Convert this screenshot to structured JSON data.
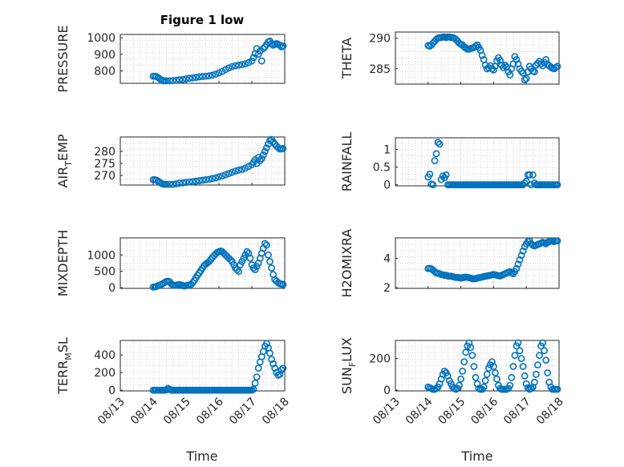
{
  "figure": {
    "title": "Figure 1 low",
    "xlabel": "Time",
    "x_tick_labels": [
      "08/13",
      "08/14",
      "08/15",
      "08/16",
      "08/17",
      "08/18"
    ],
    "marker_color": "#0072BD"
  },
  "chart_data": [
    {
      "type": "scatter",
      "ylabel": "PRESSURE",
      "xlim": [
        0,
        5
      ],
      "ylim": [
        725,
        1020
      ],
      "y_ticks": [
        800,
        900,
        1000
      ],
      "grid": true,
      "x": [
        1.0,
        1.05,
        1.1,
        1.15,
        1.2,
        1.25,
        1.3,
        1.35,
        1.4,
        1.5,
        1.6,
        1.7,
        1.8,
        1.9,
        2.0,
        2.1,
        2.2,
        2.3,
        2.4,
        2.5,
        2.6,
        2.7,
        2.8,
        2.9,
        3.0,
        3.1,
        3.2,
        3.3,
        3.4,
        3.5,
        3.6,
        3.7,
        3.8,
        3.9,
        4.0,
        4.05,
        4.1,
        4.15,
        4.2,
        4.25,
        4.3,
        4.35,
        4.4,
        4.45,
        4.5,
        4.55,
        4.6,
        4.65,
        4.7,
        4.75,
        4.8,
        4.85,
        4.9,
        4.95
      ],
      "values": [
        768,
        768,
        765,
        760,
        752,
        745,
        741,
        740,
        740,
        740,
        741,
        743,
        746,
        748,
        752,
        755,
        758,
        761,
        764,
        766,
        768,
        770,
        774,
        780,
        788,
        797,
        808,
        818,
        826,
        831,
        835,
        838,
        842,
        850,
        860,
        880,
        905,
        935,
        900,
        920,
        860,
        935,
        945,
        960,
        975,
        980,
        965,
        955,
        960,
        965,
        960,
        955,
        945,
        950
      ]
    },
    {
      "type": "scatter",
      "ylabel": "THETA",
      "xlim": [
        0,
        5
      ],
      "ylim": [
        282.5,
        291
      ],
      "y_ticks": [
        285,
        290
      ],
      "grid": true,
      "x": [
        1.0,
        1.05,
        1.1,
        1.15,
        1.2,
        1.25,
        1.3,
        1.35,
        1.4,
        1.45,
        1.5,
        1.55,
        1.6,
        1.65,
        1.7,
        1.75,
        1.8,
        1.85,
        1.9,
        1.95,
        2.0,
        2.05,
        2.1,
        2.15,
        2.2,
        2.25,
        2.3,
        2.35,
        2.4,
        2.45,
        2.5,
        2.55,
        2.6,
        2.65,
        2.7,
        2.75,
        2.8,
        2.85,
        2.9,
        2.95,
        3.0,
        3.05,
        3.1,
        3.15,
        3.2,
        3.25,
        3.3,
        3.35,
        3.4,
        3.45,
        3.5,
        3.55,
        3.6,
        3.65,
        3.7,
        3.75,
        3.8,
        3.85,
        3.9,
        3.95,
        4.0,
        4.05,
        4.1,
        4.15,
        4.2,
        4.25,
        4.3,
        4.35,
        4.4,
        4.45,
        4.5,
        4.55,
        4.6,
        4.65,
        4.7,
        4.75,
        4.8,
        4.85,
        4.9,
        4.95
      ],
      "values": [
        288.8,
        288.7,
        288.9,
        289.2,
        289.5,
        289.8,
        290.0,
        290.1,
        290.1,
        290.2,
        290.2,
        290.1,
        290.2,
        290.2,
        290.1,
        290.1,
        290.0,
        289.8,
        289.5,
        289.2,
        289.0,
        288.9,
        288.6,
        288.4,
        288.2,
        288.2,
        288.3,
        288.4,
        288.5,
        288.7,
        288.9,
        288.5,
        288.0,
        287.2,
        286.5,
        285.6,
        285.0,
        285.2,
        285.5,
        285.0,
        284.8,
        285.4,
        286.3,
        286.8,
        286.4,
        285.6,
        285.2,
        285.6,
        285.3,
        284.5,
        284.0,
        285.0,
        285.8,
        287.0,
        286.5,
        285.8,
        285.0,
        284.6,
        284.3,
        283.2,
        283.4,
        284.5,
        285.4,
        285.0,
        284.6,
        284.5,
        285.6,
        285.9,
        286.2,
        285.8,
        285.5,
        286.0,
        286.5,
        285.8,
        285.5,
        285.3,
        285.1,
        285.0,
        285.2,
        285.4
      ]
    },
    {
      "type": "scatter",
      "ylabel": "AIR",
      "ylabel_sub": "T",
      "ylabel_after": "EMP",
      "xlim": [
        0,
        5
      ],
      "ylim": [
        266,
        286
      ],
      "y_ticks": [
        270,
        275,
        280
      ],
      "grid": true,
      "x": [
        1.0,
        1.05,
        1.1,
        1.15,
        1.2,
        1.25,
        1.3,
        1.35,
        1.4,
        1.5,
        1.6,
        1.7,
        1.8,
        1.9,
        2.0,
        2.1,
        2.2,
        2.3,
        2.4,
        2.5,
        2.6,
        2.7,
        2.8,
        2.9,
        3.0,
        3.1,
        3.2,
        3.3,
        3.4,
        3.5,
        3.6,
        3.7,
        3.8,
        3.9,
        4.0,
        4.05,
        4.1,
        4.15,
        4.2,
        4.25,
        4.3,
        4.35,
        4.4,
        4.45,
        4.5,
        4.55,
        4.6,
        4.65,
        4.7,
        4.75,
        4.8,
        4.85,
        4.9,
        4.95
      ],
      "values": [
        268.2,
        268.2,
        268.0,
        267.6,
        267.1,
        266.7,
        266.4,
        266.3,
        266.3,
        266.3,
        266.3,
        266.5,
        266.8,
        266.9,
        267.1,
        267.3,
        267.4,
        267.6,
        267.8,
        268.0,
        268.2,
        268.4,
        268.7,
        269.0,
        269.4,
        269.8,
        270.3,
        270.8,
        271.3,
        271.8,
        272.2,
        272.5,
        273.0,
        273.7,
        274.5,
        275.4,
        276.5,
        275.0,
        277.5,
        276.2,
        277.0,
        278.5,
        280.0,
        281.5,
        283.0,
        284.5,
        285.0,
        284.0,
        283.0,
        282.2,
        281.6,
        281.0,
        281.0,
        281.2
      ]
    },
    {
      "type": "scatter",
      "ylabel": "RAINFALL",
      "xlim": [
        0,
        5
      ],
      "ylim": [
        -0.03,
        1.33
      ],
      "y_ticks": [
        0,
        0.5,
        1
      ],
      "y_tick_labels": [
        "0",
        "0.5",
        "1"
      ],
      "grid": true,
      "x": [
        1.0,
        1.05,
        1.1,
        1.15,
        1.2,
        1.25,
        1.3,
        1.35,
        1.4,
        1.45,
        1.5,
        1.55,
        1.6,
        1.65,
        1.7,
        1.75,
        1.8,
        1.85,
        1.9,
        1.95,
        2.0,
        2.05,
        2.1,
        2.15,
        2.2,
        2.25,
        2.3,
        2.35,
        2.4,
        2.45,
        2.5,
        2.55,
        2.6,
        2.65,
        2.7,
        2.75,
        2.8,
        2.85,
        2.9,
        2.95,
        3.0,
        3.05,
        3.1,
        3.15,
        3.2,
        3.25,
        3.3,
        3.35,
        3.4,
        3.45,
        3.5,
        3.55,
        3.6,
        3.65,
        3.7,
        3.75,
        3.8,
        3.85,
        3.9,
        3.95,
        4.0,
        4.05,
        4.1,
        4.15,
        4.2,
        4.25,
        4.3,
        4.35,
        4.4,
        4.45,
        4.5,
        4.55,
        4.6,
        4.65,
        4.7,
        4.75,
        4.8,
        4.85,
        4.9,
        4.95
      ],
      "values": [
        0.22,
        0.3,
        0.02,
        0.0,
        0.68,
        0.88,
        1.2,
        1.15,
        0.15,
        0.25,
        0.2,
        0.28,
        0.0,
        0.0,
        0,
        0,
        0,
        0,
        0,
        0,
        0,
        0,
        0,
        0,
        0,
        0,
        0,
        0,
        0,
        0,
        0,
        0,
        0,
        0,
        0,
        0,
        0,
        0,
        0,
        0,
        0,
        0,
        0,
        0,
        0,
        0,
        0,
        0,
        0,
        0,
        0,
        0,
        0,
        0,
        0,
        0,
        0,
        0,
        0,
        0.05,
        0.1,
        0.28,
        0.28,
        0.0,
        0.28,
        0.05,
        0,
        0,
        0,
        0,
        0,
        0,
        0,
        0,
        0,
        0,
        0,
        0,
        0,
        0
      ]
    },
    {
      "type": "scatter",
      "ylabel": "MIXDEPTH",
      "xlim": [
        0,
        5
      ],
      "ylim": [
        -20,
        1520
      ],
      "y_ticks": [
        0,
        500,
        1000
      ],
      "grid": true,
      "x": [
        1.0,
        1.05,
        1.1,
        1.15,
        1.2,
        1.25,
        1.3,
        1.35,
        1.4,
        1.45,
        1.5,
        1.55,
        1.6,
        1.65,
        1.7,
        1.75,
        1.8,
        1.85,
        1.9,
        1.95,
        2.0,
        2.05,
        2.1,
        2.15,
        2.2,
        2.25,
        2.3,
        2.35,
        2.4,
        2.45,
        2.5,
        2.55,
        2.6,
        2.65,
        2.7,
        2.75,
        2.8,
        2.85,
        2.9,
        2.95,
        3.0,
        3.05,
        3.1,
        3.15,
        3.2,
        3.25,
        3.3,
        3.35,
        3.4,
        3.45,
        3.5,
        3.55,
        3.6,
        3.65,
        3.7,
        3.75,
        3.8,
        3.85,
        3.9,
        3.95,
        4.0,
        4.05,
        4.1,
        4.15,
        4.2,
        4.25,
        4.3,
        4.35,
        4.4,
        4.45,
        4.5,
        4.55,
        4.6,
        4.65,
        4.7,
        4.75,
        4.8,
        4.85,
        4.9,
        4.95
      ],
      "values": [
        20,
        25,
        40,
        60,
        80,
        100,
        130,
        160,
        190,
        200,
        180,
        120,
        80,
        70,
        80,
        90,
        100,
        80,
        60,
        50,
        60,
        70,
        80,
        100,
        150,
        220,
        300,
        380,
        450,
        520,
        600,
        680,
        720,
        760,
        800,
        860,
        920,
        980,
        1030,
        1080,
        1100,
        1120,
        1100,
        1050,
        1000,
        950,
        900,
        850,
        800,
        700,
        600,
        550,
        500,
        700,
        800,
        900,
        1000,
        1100,
        1050,
        900,
        700,
        600,
        550,
        650,
        750,
        900,
        1050,
        1200,
        1350,
        1300,
        1000,
        800,
        600,
        400,
        250,
        200,
        150,
        120,
        110,
        100
      ]
    },
    {
      "type": "scatter",
      "ylabel": "H2OMIXRA",
      "xlim": [
        0,
        5
      ],
      "ylim": [
        1.95,
        5.4
      ],
      "y_ticks": [
        2,
        4
      ],
      "grid": true,
      "x": [
        1.0,
        1.05,
        1.1,
        1.15,
        1.2,
        1.25,
        1.3,
        1.35,
        1.4,
        1.45,
        1.5,
        1.55,
        1.6,
        1.65,
        1.7,
        1.75,
        1.8,
        1.85,
        1.9,
        1.95,
        2.0,
        2.05,
        2.1,
        2.15,
        2.2,
        2.25,
        2.3,
        2.35,
        2.4,
        2.45,
        2.5,
        2.55,
        2.6,
        2.65,
        2.7,
        2.75,
        2.8,
        2.85,
        2.9,
        2.95,
        3.0,
        3.05,
        3.1,
        3.15,
        3.2,
        3.25,
        3.3,
        3.35,
        3.4,
        3.45,
        3.5,
        3.55,
        3.6,
        3.65,
        3.7,
        3.75,
        3.8,
        3.85,
        3.9,
        3.95,
        4.0,
        4.05,
        4.1,
        4.15,
        4.2,
        4.25,
        4.3,
        4.35,
        4.4,
        4.45,
        4.5,
        4.55,
        4.6,
        4.65,
        4.7,
        4.75,
        4.8,
        4.85,
        4.9,
        4.95
      ],
      "values": [
        3.3,
        3.32,
        3.28,
        3.2,
        3.1,
        3.0,
        2.98,
        2.95,
        2.9,
        2.88,
        2.85,
        2.85,
        2.8,
        2.78,
        2.78,
        2.75,
        2.72,
        2.7,
        2.7,
        2.68,
        2.65,
        2.68,
        2.7,
        2.72,
        2.7,
        2.68,
        2.65,
        2.62,
        2.6,
        2.62,
        2.65,
        2.68,
        2.7,
        2.72,
        2.75,
        2.78,
        2.8,
        2.82,
        2.85,
        2.88,
        2.9,
        2.88,
        2.85,
        2.82,
        2.8,
        2.85,
        2.9,
        2.95,
        3.0,
        3.05,
        3.1,
        3.0,
        2.95,
        3.1,
        3.3,
        3.6,
        3.9,
        4.2,
        4.5,
        4.8,
        5.0,
        5.15,
        5.2,
        5.0,
        4.9,
        4.85,
        4.9,
        4.95,
        5.0,
        5.05,
        5.1,
        5.05,
        5.0,
        5.1,
        5.15,
        5.2,
        5.18,
        5.15,
        5.2,
        5.2
      ]
    },
    {
      "type": "scatter",
      "ylabel": "TERR",
      "ylabel_sub": "M",
      "ylabel_after": "SL",
      "xlim": [
        0,
        5
      ],
      "ylim": [
        -8,
        565
      ],
      "y_ticks": [
        0,
        200,
        400
      ],
      "grid": true,
      "x": [
        1.0,
        1.05,
        1.1,
        1.15,
        1.2,
        1.25,
        1.3,
        1.35,
        1.4,
        1.45,
        1.5,
        1.55,
        1.6,
        1.65,
        1.7,
        1.75,
        1.8,
        1.85,
        1.9,
        1.95,
        2.0,
        2.05,
        2.1,
        2.15,
        2.2,
        2.25,
        2.3,
        2.35,
        2.4,
        2.45,
        2.5,
        2.55,
        2.6,
        2.65,
        2.7,
        2.75,
        2.8,
        2.85,
        2.9,
        2.95,
        3.0,
        3.05,
        3.1,
        3.15,
        3.2,
        3.25,
        3.3,
        3.35,
        3.4,
        3.45,
        3.5,
        3.55,
        3.6,
        3.65,
        3.7,
        3.75,
        3.8,
        3.85,
        3.9,
        3.95,
        4.0,
        4.05,
        4.1,
        4.15,
        4.2,
        4.25,
        4.3,
        4.35,
        4.4,
        4.45,
        4.5,
        4.55,
        4.6,
        4.65,
        4.7,
        4.75,
        4.8,
        4.85,
        4.9,
        4.95
      ],
      "values": [
        0,
        0,
        0,
        0,
        0,
        0,
        0,
        0,
        5,
        20,
        10,
        0,
        0,
        0,
        0,
        0,
        0,
        0,
        0,
        0,
        0,
        0,
        0,
        0,
        0,
        0,
        0,
        0,
        0,
        0,
        0,
        0,
        0,
        0,
        0,
        0,
        0,
        0,
        0,
        0,
        0,
        0,
        0,
        0,
        0,
        0,
        0,
        0,
        0,
        0,
        0,
        0,
        0,
        0,
        0,
        0,
        0,
        0,
        0,
        0,
        0,
        10,
        80,
        150,
        250,
        320,
        380,
        440,
        500,
        530,
        480,
        420,
        350,
        300,
        250,
        200,
        170,
        180,
        230,
        250
      ]
    },
    {
      "type": "scatter",
      "ylabel": "SUN",
      "ylabel_sub": "F",
      "ylabel_after": "LUX",
      "xlim": [
        0,
        5
      ],
      "ylim": [
        -5,
        315
      ],
      "y_ticks": [
        0,
        200
      ],
      "grid": true,
      "x": [
        1.0,
        1.05,
        1.1,
        1.15,
        1.2,
        1.25,
        1.3,
        1.35,
        1.4,
        1.45,
        1.5,
        1.55,
        1.6,
        1.65,
        1.7,
        1.75,
        1.8,
        1.85,
        1.9,
        1.95,
        2.0,
        2.05,
        2.1,
        2.15,
        2.2,
        2.25,
        2.3,
        2.35,
        2.4,
        2.45,
        2.5,
        2.55,
        2.6,
        2.65,
        2.7,
        2.75,
        2.8,
        2.85,
        2.9,
        2.95,
        3.0,
        3.05,
        3.1,
        3.15,
        3.2,
        3.25,
        3.3,
        3.35,
        3.4,
        3.45,
        3.5,
        3.55,
        3.6,
        3.65,
        3.7,
        3.75,
        3.8,
        3.85,
        3.9,
        3.95,
        4.0,
        4.05,
        4.1,
        4.15,
        4.2,
        4.25,
        4.3,
        4.35,
        4.4,
        4.45,
        4.5,
        4.55,
        4.6,
        4.65,
        4.7,
        4.75,
        4.8,
        4.85,
        4.9,
        4.95
      ],
      "values": [
        20,
        15,
        10,
        5,
        5,
        10,
        20,
        40,
        70,
        100,
        120,
        110,
        90,
        60,
        40,
        20,
        10,
        5,
        10,
        30,
        70,
        120,
        180,
        240,
        280,
        300,
        270,
        220,
        150,
        80,
        40,
        10,
        5,
        5,
        20,
        60,
        100,
        140,
        160,
        180,
        150,
        110,
        70,
        30,
        10,
        5,
        5,
        5,
        5,
        10,
        30,
        80,
        150,
        220,
        280,
        300,
        250,
        200,
        150,
        90,
        40,
        15,
        5,
        10,
        20,
        50,
        100,
        160,
        220,
        280,
        300,
        250,
        190,
        110,
        50,
        20,
        5,
        5,
        5,
        5
      ]
    }
  ]
}
